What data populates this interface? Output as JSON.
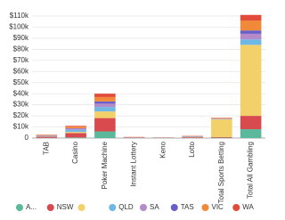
{
  "chart_data": {
    "type": "stacked-bar",
    "categories": [
      "TAB",
      "Casino",
      "Poker Machine",
      "Instant Lottery",
      "Keno",
      "Lotto",
      "Total Sports Betting",
      "Total All Gambling"
    ],
    "series": [
      {
        "name": "A...",
        "color": "#5cb89a",
        "values": [
          0.2,
          0.5,
          6,
          0.05,
          0.05,
          0.1,
          0.3,
          8
        ]
      },
      {
        "name": "NSW",
        "color": "#d94a4f",
        "values": [
          1,
          4,
          12,
          0.3,
          0.2,
          0.6,
          0.5,
          12
        ]
      },
      {
        "name": null,
        "color": "#f2d16b",
        "values": [
          0.2,
          1,
          6,
          0.05,
          0.05,
          0.1,
          16,
          64
        ]
      },
      {
        "name": "QLD",
        "color": "#6fb8e6",
        "values": [
          0.5,
          2,
          4,
          0.2,
          0.1,
          0.4,
          0.3,
          5
        ]
      },
      {
        "name": "SA",
        "color": "#b48ac9",
        "values": [
          0.3,
          1,
          3,
          0.1,
          0.05,
          0.2,
          0.3,
          5
        ]
      },
      {
        "name": "TAS",
        "color": "#6a5fc9",
        "values": [
          0.1,
          0.3,
          2,
          0.05,
          0.02,
          0.05,
          0.1,
          3
        ]
      },
      {
        "name": "VIC",
        "color": "#f0893a",
        "values": [
          0.5,
          1.5,
          4,
          0.2,
          0.1,
          0.4,
          0.5,
          9
        ]
      },
      {
        "name": "WA",
        "color": "#e24b3a",
        "values": [
          0.2,
          0.7,
          3,
          0.1,
          0.05,
          0.2,
          0.3,
          5
        ]
      }
    ],
    "ylim": [
      0,
      110
    ],
    "yticks": [
      0,
      {
        "value": 10,
        "label": "$10k"
      },
      {
        "value": 20,
        "label": "$20k"
      },
      {
        "value": 30,
        "label": "$30k"
      },
      {
        "value": 40,
        "label": "$40k"
      },
      {
        "value": 50,
        "label": "$50k"
      },
      {
        "value": 60,
        "label": "$60k"
      },
      {
        "value": 70,
        "label": "$70k"
      },
      {
        "value": 80,
        "label": "$80k"
      },
      {
        "value": 90,
        "label": "$90k"
      },
      {
        "value": 100,
        "label": "$100k"
      },
      {
        "value": 110,
        "label": "$110k"
      }
    ],
    "grid": true
  }
}
